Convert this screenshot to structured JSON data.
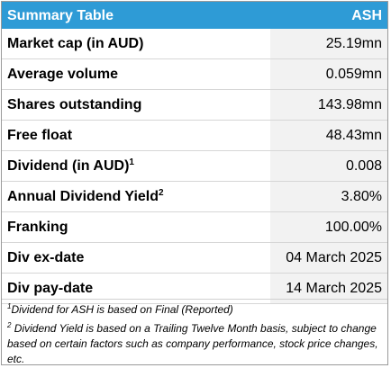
{
  "header": {
    "title": "Summary Table",
    "ticker": "ASH"
  },
  "rows": [
    {
      "label": "Market cap (in AUD)",
      "sup": "",
      "value": "25.19mn"
    },
    {
      "label": "Average volume",
      "sup": "",
      "value": "0.059mn"
    },
    {
      "label": "Shares outstanding",
      "sup": "",
      "value": "143.98mn"
    },
    {
      "label": "Free float",
      "sup": "",
      "value": "48.43mn"
    },
    {
      "label": "Dividend (in AUD)",
      "sup": "1",
      "value": "0.008"
    },
    {
      "label": "Annual Dividend Yield",
      "sup": "2",
      "value": "3.80%"
    },
    {
      "label": "Franking",
      "sup": "",
      "value": "100.00%"
    },
    {
      "label": "Div ex-date",
      "sup": "",
      "value": "04 March 2025"
    },
    {
      "label": "Div pay-date",
      "sup": "",
      "value": "14 March 2025"
    }
  ],
  "footnotes": [
    {
      "marker": "1",
      "text": "Dividend for ASH is based on Final (Reported)"
    },
    {
      "marker": "2",
      "text": " Dividend Yield is based on a Trailing Twelve Month basis, subject to change based on certain factors such as company performance, stock price changes, etc."
    }
  ],
  "colors": {
    "header_bg": "#2e9bd6",
    "value_bg": "#f2f2f2"
  }
}
